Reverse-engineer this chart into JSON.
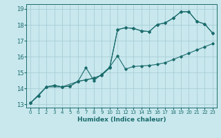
{
  "xlabel": "Humidex (Indice chaleur)",
  "xlim": [
    -0.5,
    23.5
  ],
  "ylim": [
    12.8,
    19.3
  ],
  "yticks": [
    13,
    14,
    15,
    16,
    17,
    18,
    19
  ],
  "xticks": [
    0,
    1,
    2,
    3,
    4,
    5,
    6,
    7,
    8,
    9,
    10,
    11,
    12,
    13,
    14,
    15,
    16,
    17,
    18,
    19,
    20,
    21,
    22,
    23
  ],
  "bg_color": "#c8e8ee",
  "grid_color": "#a8cdd4",
  "line_color": "#1a6b6b",
  "line1_x": [
    0,
    1,
    2,
    3,
    4,
    5,
    6,
    7,
    8,
    9,
    10,
    11,
    12,
    13,
    14,
    15,
    16,
    17,
    18,
    19,
    20,
    21,
    22,
    23
  ],
  "line1_y": [
    13.1,
    13.55,
    14.1,
    14.2,
    14.1,
    14.15,
    14.45,
    14.55,
    14.65,
    14.85,
    15.3,
    17.7,
    17.82,
    17.78,
    17.62,
    17.58,
    18.02,
    18.12,
    18.42,
    18.82,
    18.82,
    18.22,
    18.05,
    17.48
  ],
  "line2_x": [
    0,
    2,
    4,
    6,
    7,
    8,
    9,
    10,
    11,
    12,
    13,
    14,
    15,
    16,
    17,
    18,
    19,
    20,
    21,
    22,
    23
  ],
  "line2_y": [
    13.1,
    14.1,
    14.1,
    14.45,
    15.32,
    14.5,
    14.9,
    15.35,
    16.05,
    15.22,
    15.38,
    15.42,
    15.45,
    15.52,
    15.62,
    15.82,
    16.02,
    16.22,
    16.42,
    16.62,
    16.82
  ],
  "line3_x": [
    0,
    1,
    2,
    3,
    4,
    5,
    6,
    7,
    8,
    9,
    10,
    11,
    12,
    13,
    14,
    15,
    16,
    17,
    18,
    19,
    20,
    21,
    22,
    23
  ],
  "line3_y": [
    13.1,
    13.55,
    14.1,
    14.2,
    14.1,
    14.15,
    14.45,
    14.55,
    14.65,
    14.85,
    15.3,
    17.7,
    17.82,
    17.78,
    17.62,
    17.58,
    18.02,
    18.12,
    18.42,
    18.82,
    18.82,
    18.22,
    18.05,
    17.48
  ]
}
